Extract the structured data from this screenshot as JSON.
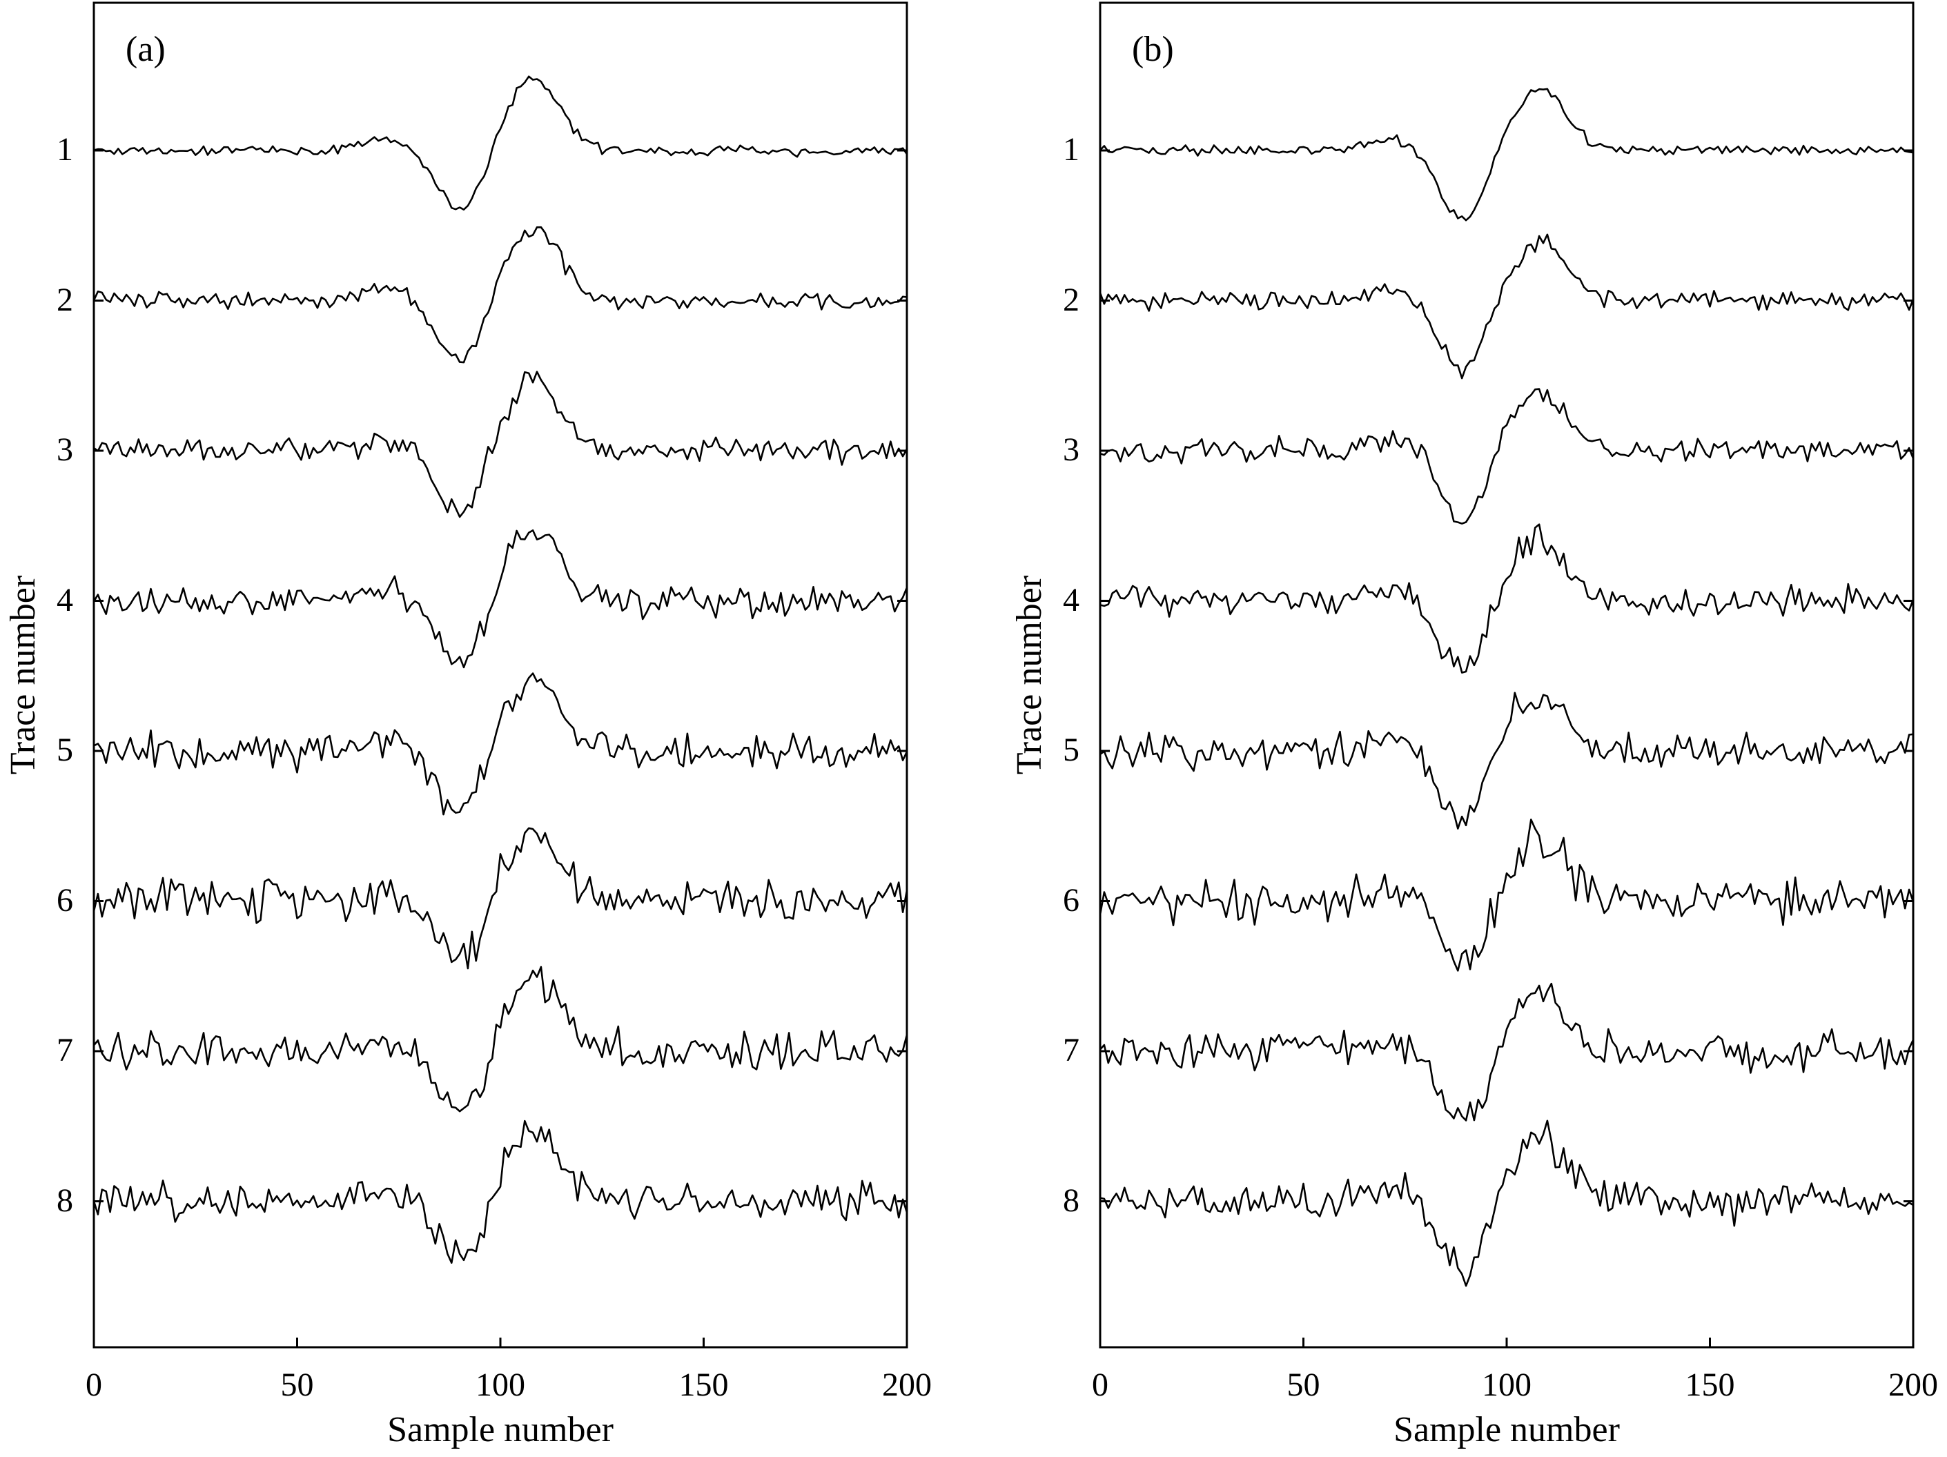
{
  "chart_data": [
    {
      "type": "line",
      "panel_label": "(a)",
      "xlabel": "Sample number",
      "ylabel": "Trace number",
      "xlim": [
        0,
        200
      ],
      "x_ticks": [
        "0",
        "50",
        "100",
        "150",
        "200"
      ],
      "trace_labels": [
        "1",
        "2",
        "3",
        "4",
        "5",
        "6",
        "7",
        "8"
      ],
      "grid": false,
      "line_color": "#000000",
      "n_samples": 201,
      "wavelet": {
        "trough_sample": 90,
        "peak_sample": 108,
        "trough_value": -0.42,
        "peak_value": 0.5
      },
      "noise_level": [
        0.05,
        0.09,
        0.12,
        0.15,
        0.17,
        0.2,
        0.18,
        0.2
      ]
    },
    {
      "type": "line",
      "panel_label": "(b)",
      "xlabel": "Sample number",
      "ylabel": "Trace number",
      "xlim": [
        0,
        200
      ],
      "x_ticks": [
        "0",
        "50",
        "100",
        "150",
        "200"
      ],
      "trace_labels": [
        "1",
        "2",
        "3",
        "4",
        "5",
        "6",
        "7",
        "8"
      ],
      "grid": false,
      "line_color": "#000000",
      "n_samples": 201,
      "wavelet": {
        "trough_sample": 89,
        "peak_sample": 108,
        "trough_value": -0.48,
        "peak_value": 0.42
      },
      "noise_level": [
        0.05,
        0.09,
        0.11,
        0.15,
        0.17,
        0.2,
        0.18,
        0.2
      ]
    }
  ]
}
